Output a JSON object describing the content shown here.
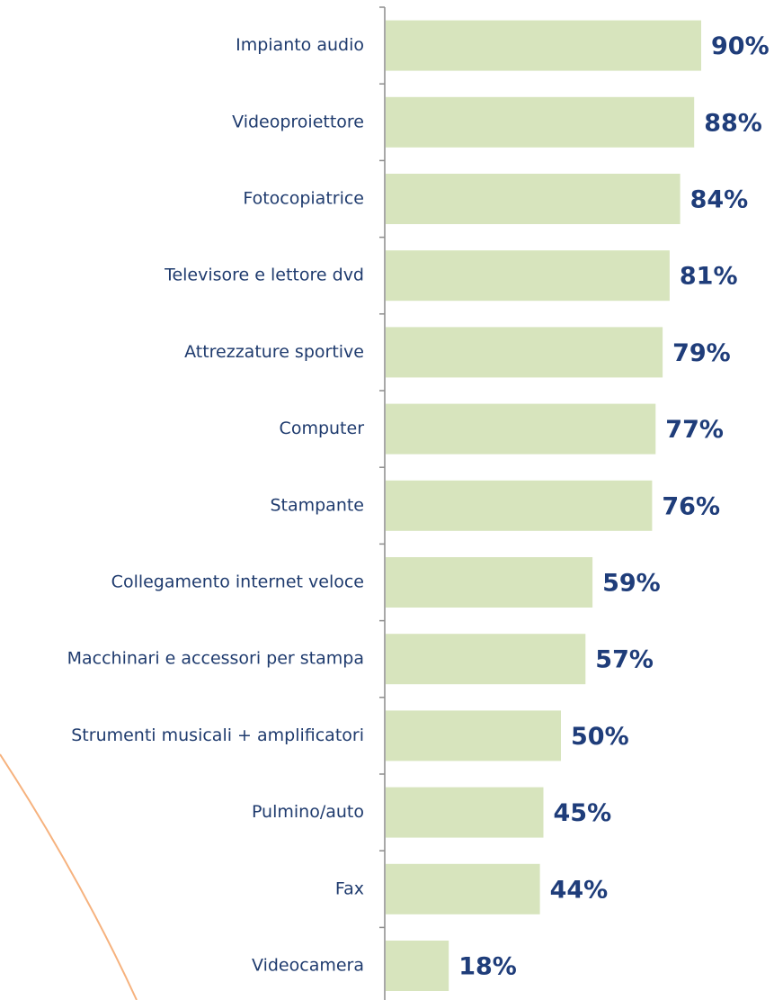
{
  "chart_data": {
    "type": "bar",
    "orientation": "horizontal",
    "categories": [
      "Impianto audio",
      "Videoproiettore",
      "Fotocopiatrice",
      "Televisore e lettore dvd",
      "Attrezzature sportive",
      "Computer",
      "Stampante",
      "Collegamento internet veloce",
      "Macchinari e accessori per stampa",
      "Strumenti musicali + amplificatori",
      "Pulmino/auto",
      "Fax",
      "Videocamera"
    ],
    "values": [
      90,
      88,
      84,
      81,
      79,
      77,
      76,
      59,
      57,
      50,
      45,
      44,
      18
    ],
    "value_labels": [
      "90%",
      "88%",
      "84%",
      "81%",
      "79%",
      "77%",
      "76%",
      "59%",
      "57%",
      "50%",
      "45%",
      "44%",
      "18%"
    ],
    "color": "#d7e4bd"
  }
}
